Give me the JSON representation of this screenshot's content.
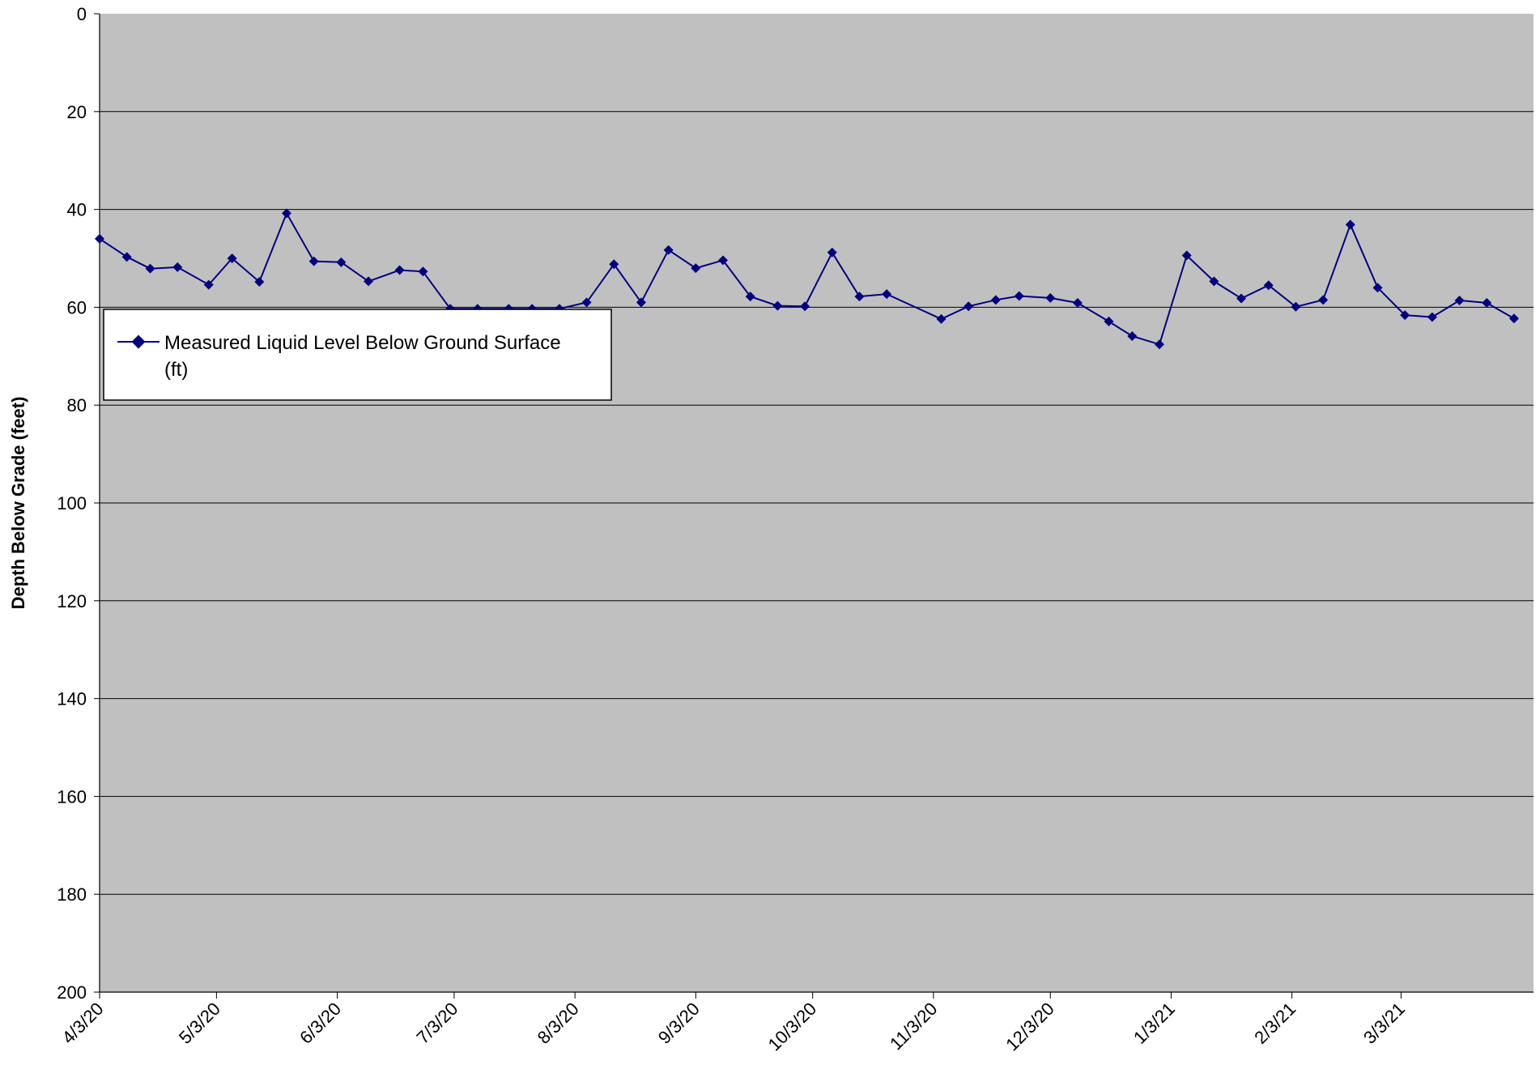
{
  "chart_data": {
    "type": "line",
    "title": "",
    "xlabel": "",
    "ylabel": "Depth Below Grade (feet)",
    "ylim": [
      0,
      200
    ],
    "y_inverted": true,
    "y_ticks": [
      0,
      20,
      40,
      60,
      80,
      100,
      120,
      140,
      160,
      180,
      200
    ],
    "xlim": [
      "2020-04-03",
      "2021-04-06"
    ],
    "x_tick_dates": [
      "2020-04-03",
      "2020-05-03",
      "2020-06-03",
      "2020-07-03",
      "2020-08-03",
      "2020-09-03",
      "2020-10-03",
      "2020-11-03",
      "2020-12-03",
      "2021-01-03",
      "2021-02-03",
      "2021-03-03"
    ],
    "x_tick_labels": [
      "4/3/20",
      "5/3/20",
      "6/3/20",
      "7/3/20",
      "8/3/20",
      "9/3/20",
      "10/3/20",
      "11/3/20",
      "12/3/20",
      "1/3/21",
      "2/3/21",
      "3/3/21"
    ],
    "grid": "horizontal",
    "background_color": "#c0c0c0",
    "series_color": "#000080",
    "legend": {
      "position": "upper-left",
      "label": "Measured Liquid Level Below Ground Surface (ft)",
      "label_lines": [
        "Measured Liquid Level Below Ground Surface",
        "(ft)"
      ]
    },
    "series": [
      {
        "name": "Measured Liquid Level Below Ground Surface (ft)",
        "marker": "diamond",
        "points": [
          [
            "2020-04-03",
            46.0
          ],
          [
            "2020-04-10",
            49.7
          ],
          [
            "2020-04-16",
            52.1
          ],
          [
            "2020-04-23",
            51.8
          ],
          [
            "2020-05-01",
            55.4
          ],
          [
            "2020-05-07",
            50.0
          ],
          [
            "2020-05-14",
            54.8
          ],
          [
            "2020-05-21",
            40.8
          ],
          [
            "2020-05-28",
            50.6
          ],
          [
            "2020-06-04",
            50.8
          ],
          [
            "2020-06-11",
            54.7
          ],
          [
            "2020-06-19",
            52.4
          ],
          [
            "2020-06-25",
            52.7
          ],
          [
            "2020-07-02",
            60.3
          ],
          [
            "2020-07-09",
            60.3
          ],
          [
            "2020-07-17",
            60.3
          ],
          [
            "2020-07-23",
            60.3
          ],
          [
            "2020-07-30",
            60.3
          ],
          [
            "2020-08-06",
            59.0
          ],
          [
            "2020-08-13",
            51.2
          ],
          [
            "2020-08-20",
            59.0
          ],
          [
            "2020-08-27",
            48.3
          ],
          [
            "2020-09-03",
            52.0
          ],
          [
            "2020-09-10",
            50.4
          ],
          [
            "2020-09-17",
            57.8
          ],
          [
            "2020-09-24",
            59.7
          ],
          [
            "2020-10-01",
            59.8
          ],
          [
            "2020-10-08",
            48.8
          ],
          [
            "2020-10-15",
            57.8
          ],
          [
            "2020-10-22",
            57.3
          ],
          [
            "2020-11-05",
            62.4
          ],
          [
            "2020-11-12",
            59.8
          ],
          [
            "2020-11-19",
            58.5
          ],
          [
            "2020-11-25",
            57.7
          ],
          [
            "2020-12-03",
            58.1
          ],
          [
            "2020-12-10",
            59.1
          ],
          [
            "2020-12-18",
            62.9
          ],
          [
            "2020-12-24",
            65.9
          ],
          [
            "2020-12-31",
            67.6
          ],
          [
            "2021-01-07",
            49.4
          ],
          [
            "2021-01-14",
            54.7
          ],
          [
            "2021-01-21",
            58.2
          ],
          [
            "2021-01-28",
            55.5
          ],
          [
            "2021-02-04",
            59.9
          ],
          [
            "2021-02-11",
            58.5
          ],
          [
            "2021-02-18",
            43.1
          ],
          [
            "2021-02-25",
            56.0
          ],
          [
            "2021-03-04",
            61.6
          ],
          [
            "2021-03-11",
            62.0
          ],
          [
            "2021-03-18",
            58.6
          ],
          [
            "2021-03-25",
            59.1
          ],
          [
            "2021-04-01",
            62.3
          ]
        ]
      }
    ]
  }
}
